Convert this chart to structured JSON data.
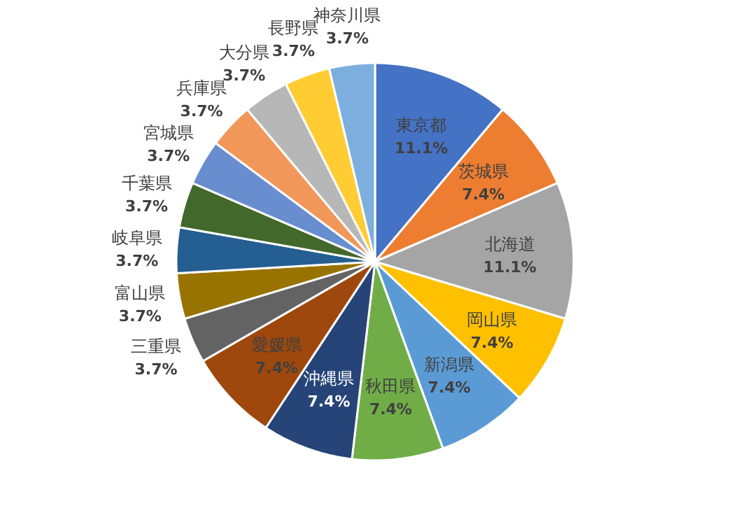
{
  "chart_data": {
    "type": "pie",
    "categories": [
      "東京都",
      "茨城県",
      "北海道",
      "岡山県",
      "新潟県",
      "秋田県",
      "沖縄県",
      "愛媛県",
      "三重県",
      "富山県",
      "岐阜県",
      "千葉県",
      "宮城県",
      "兵庫県",
      "大分県",
      "長野県",
      "神奈川県"
    ],
    "values": [
      11.1,
      7.4,
      11.1,
      7.4,
      7.4,
      7.4,
      7.4,
      7.4,
      3.7,
      3.7,
      3.7,
      3.7,
      3.7,
      3.7,
      3.7,
      3.7,
      3.7
    ],
    "value_labels": [
      "11.1%",
      "7.4%",
      "11.1%",
      "7.4%",
      "7.4%",
      "7.4%",
      "7.4%",
      "7.4%",
      "3.7%",
      "3.7%",
      "3.7%",
      "3.7%",
      "3.7%",
      "3.7%",
      "3.7%",
      "3.7%",
      "3.7%"
    ],
    "colors": [
      "#4472c4",
      "#ed7d31",
      "#a5a5a5",
      "#ffc000",
      "#5b9bd5",
      "#70ad47",
      "#264478",
      "#9e480e",
      "#636363",
      "#997300",
      "#255e91",
      "#43682b",
      "#698ed0",
      "#f1975a",
      "#b7b7b7",
      "#ffcd33",
      "#7cafdd"
    ]
  }
}
